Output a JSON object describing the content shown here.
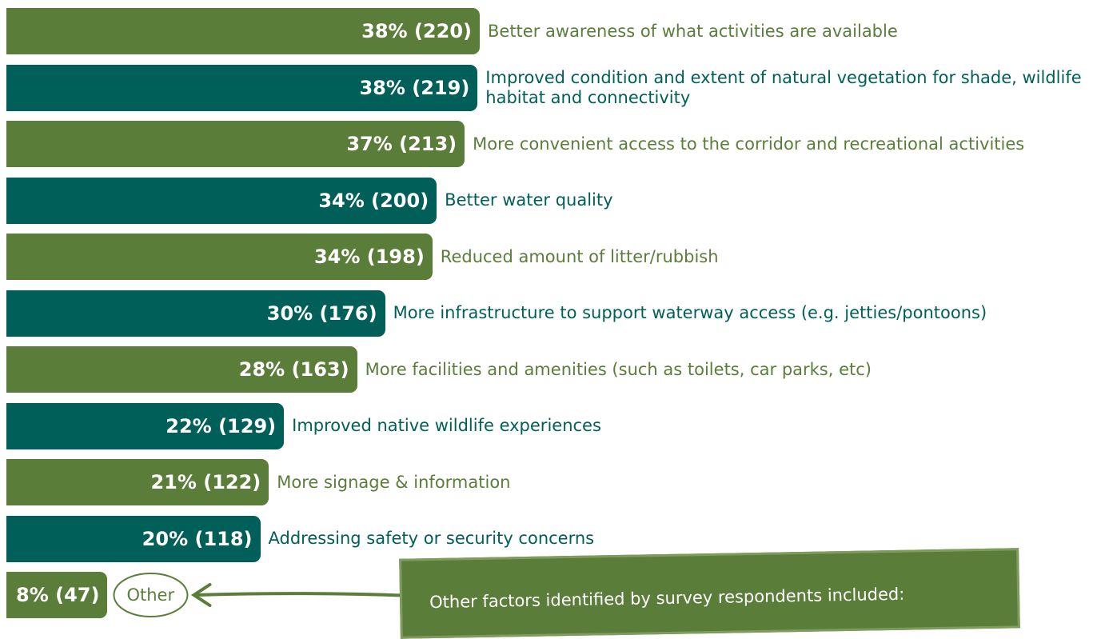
{
  "chart_data": {
    "type": "bar",
    "orientation": "horizontal",
    "categories": [
      "Better awareness of what activities are available",
      "Improved condition and extent of natural vegetation for shade, wildlife habitat and connectivity",
      "More convenient access to the corridor and recreational activities",
      "Better water quality",
      "Reduced amount of litter/rubbish",
      "More infrastructure to support waterway access (e.g. jetties/pontoons)",
      "More facilities and amenities (such as toilets, car parks, etc)",
      "Improved native wildlife experiences",
      "More signage & information",
      "Addressing safety or security concerns",
      "Other"
    ],
    "values": [
      220,
      219,
      213,
      200,
      198,
      176,
      163,
      129,
      122,
      118,
      47
    ],
    "value_labels": [
      "38% (220)",
      "38% (219)",
      "37% (213)",
      "34% (200)",
      "34% (198)",
      "30% (176)",
      "28% (163)",
      "22% (129)",
      "21% (122)",
      "20% (118)",
      "8% (47)"
    ],
    "colors": [
      "#5a7d3a",
      "#005f59"
    ],
    "annotation": "Other factors identified by survey respondents included:"
  }
}
